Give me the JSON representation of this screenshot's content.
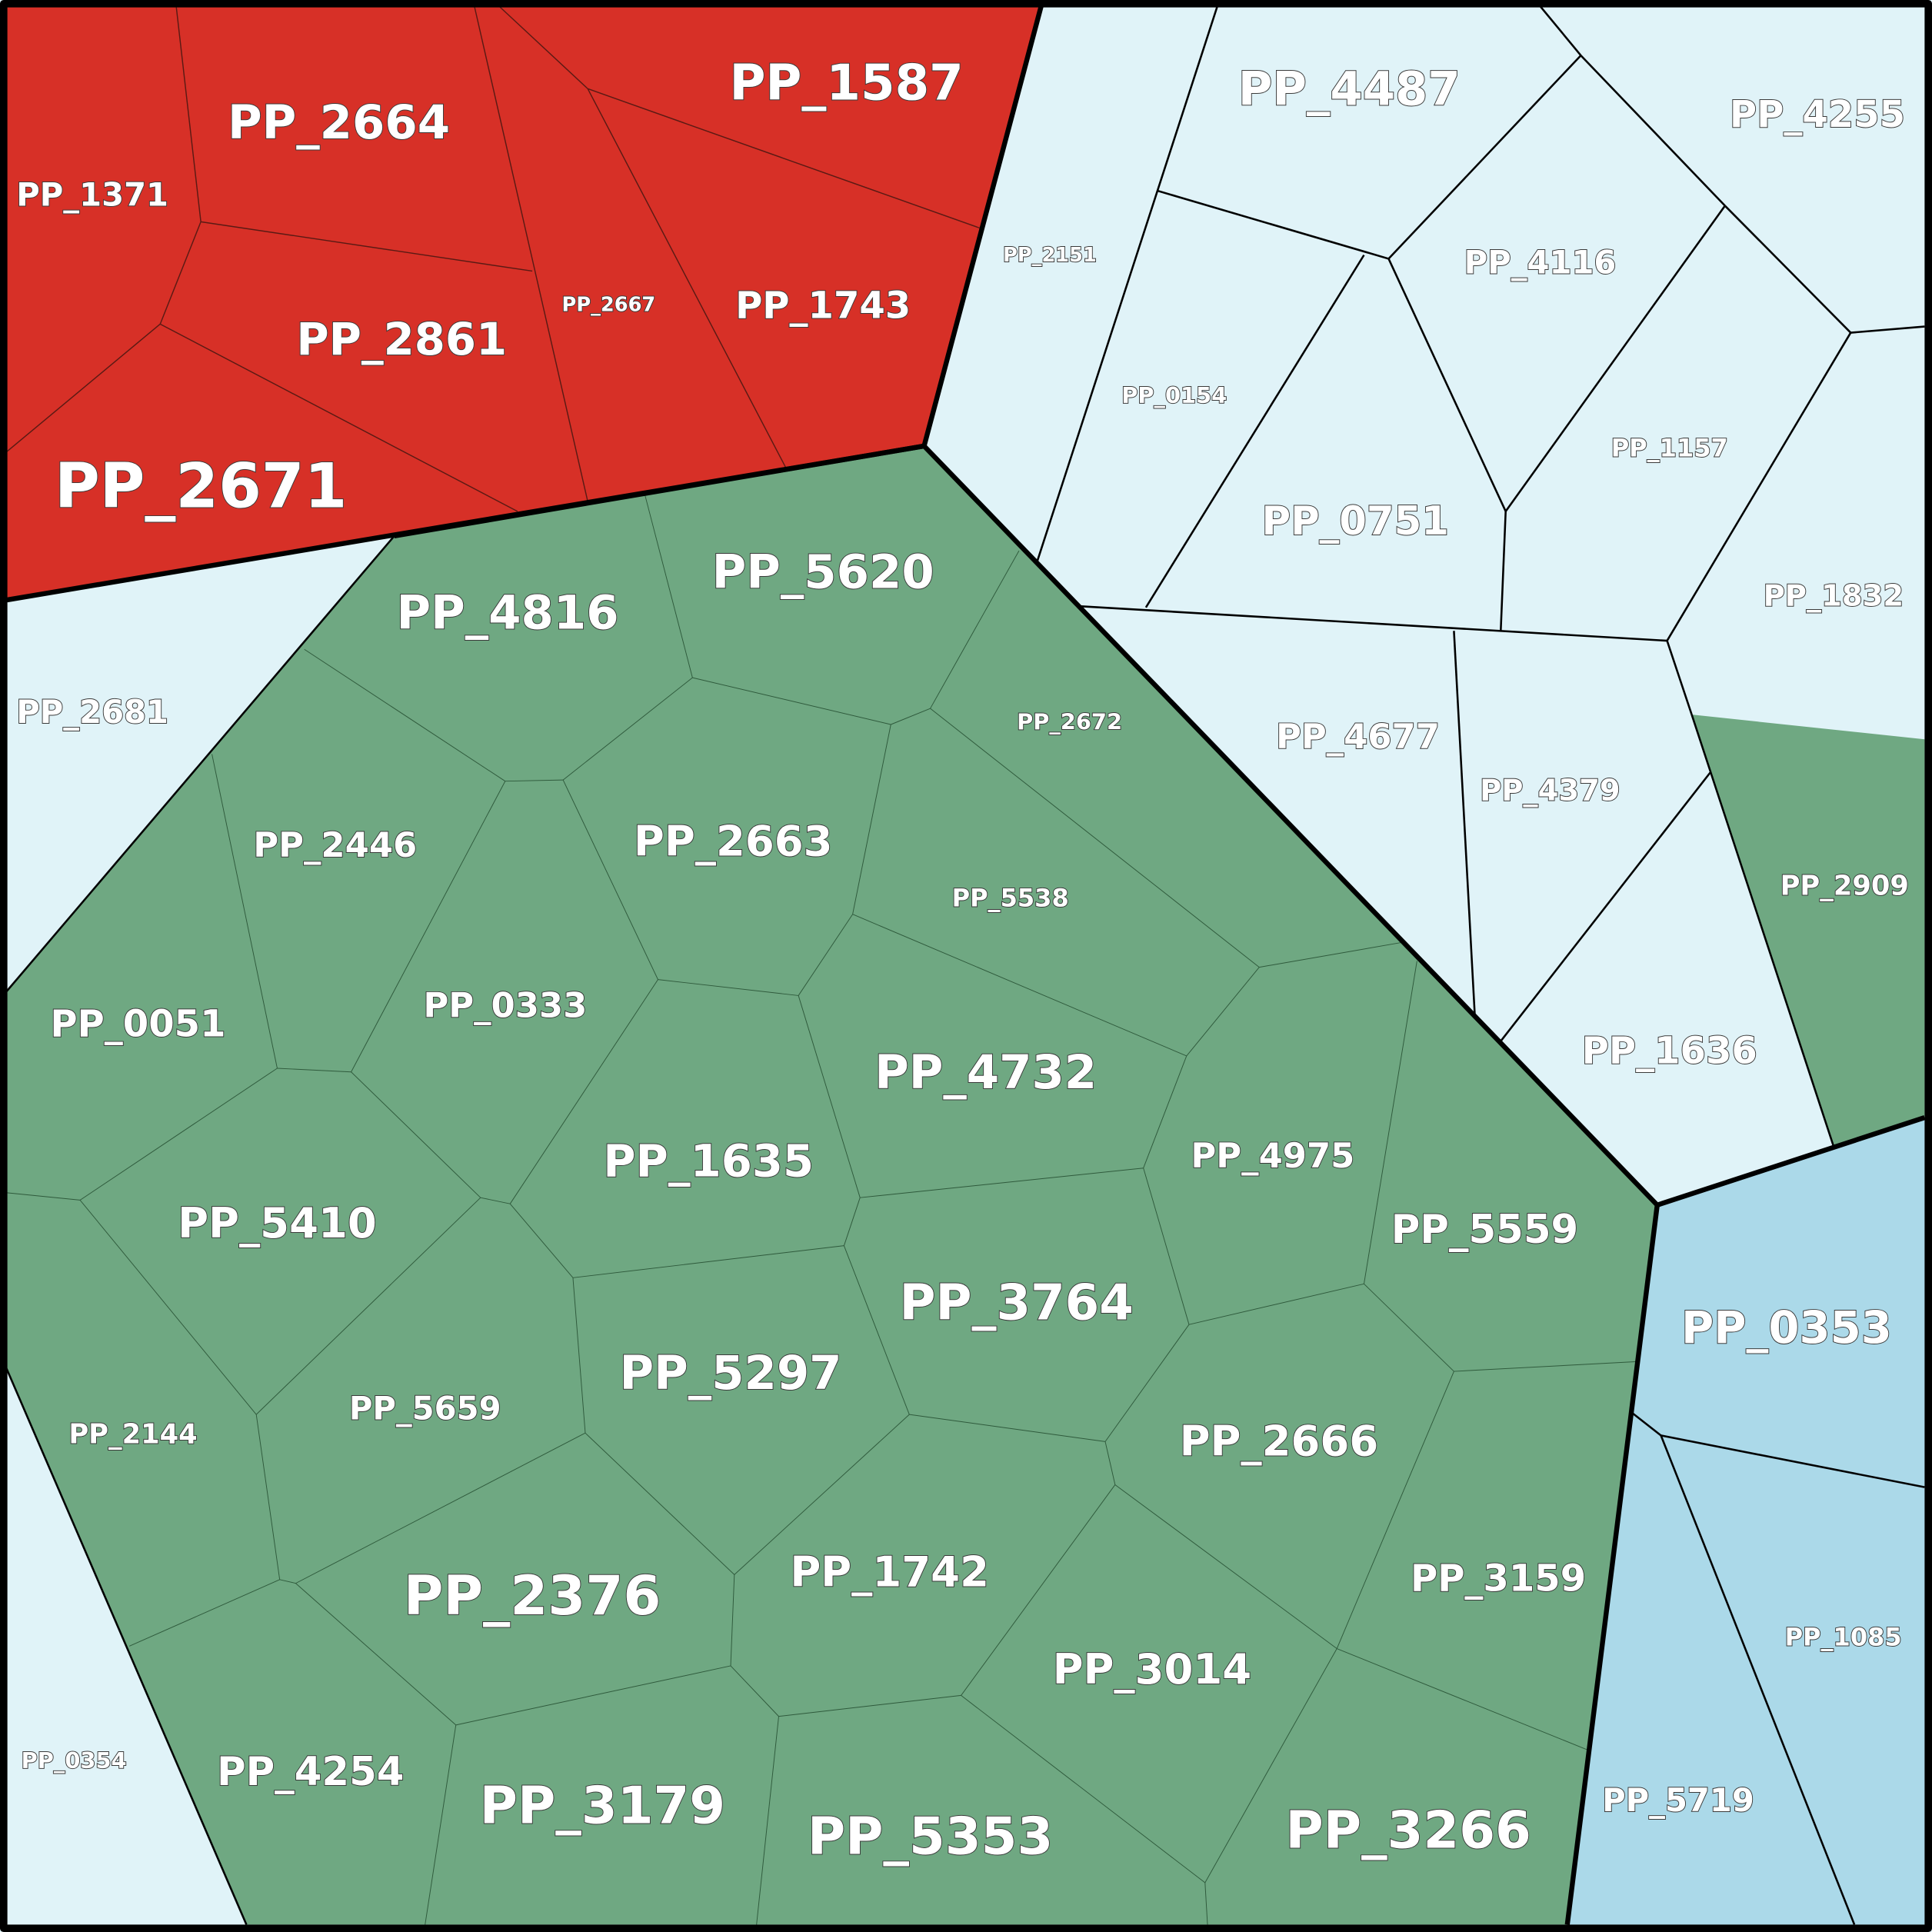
{
  "cells": [
    {
      "label": "PP_1371"
    },
    {
      "label": "PP_2664"
    },
    {
      "label": "PP_1587"
    },
    {
      "label": "PP_2861"
    },
    {
      "label": "PP_2667"
    },
    {
      "label": "PP_1743"
    },
    {
      "label": "PP_2671"
    },
    {
      "label": "PP_2151"
    },
    {
      "label": "PP_4487"
    },
    {
      "label": "PP_4255"
    },
    {
      "label": "PP_4116"
    },
    {
      "label": "PP_0154"
    },
    {
      "label": "PP_0751"
    },
    {
      "label": "PP_1157"
    },
    {
      "label": "PP_1832"
    },
    {
      "label": "PP_5620"
    },
    {
      "label": "PP_4816"
    },
    {
      "label": "PP_2681"
    },
    {
      "label": "PP_2672"
    },
    {
      "label": "PP_4677"
    },
    {
      "label": "PP_4379"
    },
    {
      "label": "PP_2446"
    },
    {
      "label": "PP_2663"
    },
    {
      "label": "PP_5538"
    },
    {
      "label": "PP_2909"
    },
    {
      "label": "PP_0051"
    },
    {
      "label": "PP_0333"
    },
    {
      "label": "PP_4732"
    },
    {
      "label": "PP_1636"
    },
    {
      "label": "PP_4975"
    },
    {
      "label": "PP_1635"
    },
    {
      "label": "PP_5410"
    },
    {
      "label": "PP_5559"
    },
    {
      "label": "PP_3764"
    },
    {
      "label": "PP_0353"
    },
    {
      "label": "PP_5297"
    },
    {
      "label": "PP_5659"
    },
    {
      "label": "PP_2144"
    },
    {
      "label": "PP_2666"
    },
    {
      "label": "PP_3159"
    },
    {
      "label": "PP_2376"
    },
    {
      "label": "PP_1742"
    },
    {
      "label": "PP_1085"
    },
    {
      "label": "PP_3014"
    },
    {
      "label": "PP_4254"
    },
    {
      "label": "PP_3179"
    },
    {
      "label": "PP_5719"
    },
    {
      "label": "PP_5353"
    },
    {
      "label": "PP_3266"
    },
    {
      "label": "PP_0354"
    }
  ]
}
